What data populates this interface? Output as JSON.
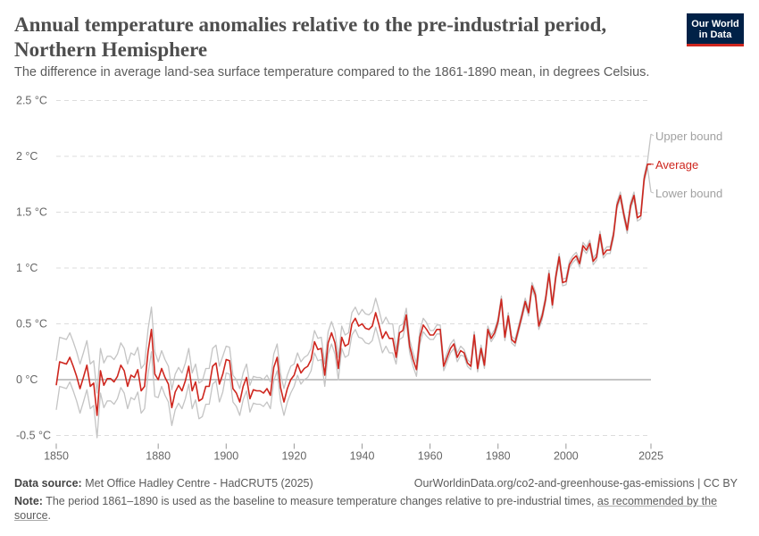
{
  "header": {
    "title": "Annual temperature anomalies relative to the pre-industrial period, Northern Hemisphere",
    "subtitle": "The difference in average land-sea surface temperature compared to the 1861-1890 mean, in degrees Celsius.",
    "logo_text": "Our World in Data"
  },
  "footer": {
    "source_label": "Data source:",
    "source_text": "Met Office Hadley Centre - HadCRUT5 (2025)",
    "url_text": "OurWorldinData.org/co2-and-greenhouse-gas-emissions | CC BY",
    "note_label": "Note:",
    "note_text": "The period 1861–1890 is used as the baseline to measure temperature changes relative to pre-industrial times, ",
    "note_link": "as recommended by the source",
    "note_end": "."
  },
  "colors": {
    "average": "#ce261e",
    "bounds": "#c4c4c4",
    "grid": "#dddddd",
    "zero_line": "#a1a1a1",
    "logo_bg": "#002147"
  },
  "chart_data": {
    "type": "line",
    "x_start": 1850,
    "x_end": 2025,
    "xlim": [
      1850,
      2025
    ],
    "ylim": [
      -0.5,
      2.5
    ],
    "x_ticks": [
      1850,
      1880,
      1900,
      1920,
      1940,
      1960,
      1980,
      2000,
      2025
    ],
    "y_ticks": [
      -0.5,
      0,
      0.5,
      1,
      1.5,
      2,
      2.5
    ],
    "y_tick_labels": [
      "-0.5 °C",
      "0 °C",
      "0.5 °C",
      "1 °C",
      "1.5 °C",
      "2 °C",
      "2.5 °C"
    ],
    "grid": "horizontal dashed",
    "series": [
      {
        "name": "Upper bound",
        "color": "#c4c4c4",
        "values": [
          0.17,
          0.38,
          0.37,
          0.36,
          0.42,
          0.34,
          0.25,
          0.14,
          0.24,
          0.35,
          0.14,
          0.17,
          -0.12,
          0.28,
          0.15,
          0.21,
          0.21,
          0.18,
          0.23,
          0.33,
          0.28,
          0.14,
          0.24,
          0.22,
          0.29,
          0.1,
          0.14,
          0.45,
          0.65,
          0.25,
          0.16,
          0.26,
          0.18,
          0.12,
          -0.09,
          0.05,
          0.11,
          0.06,
          0.15,
          0.28,
          0.06,
          0.14,
          -0.03,
          -0.01,
          0.1,
          0.1,
          0.28,
          0.31,
          0.12,
          0.21,
          0.3,
          0.29,
          0.04,
          0,
          -0.08,
          0.06,
          0.14,
          -0.05,
          0.03,
          0.02,
          0.02,
          0,
          0.04,
          -0.02,
          0.23,
          0.32,
          0.05,
          -0.08,
          0.04,
          0.12,
          0.14,
          0.24,
          0.16,
          0.2,
          0.22,
          0.28,
          0.44,
          0.37,
          0.38,
          0.14,
          0.43,
          0.52,
          0.43,
          0.2,
          0.48,
          0.4,
          0.42,
          0.6,
          0.65,
          0.58,
          0.63,
          0.59,
          0.58,
          0.61,
          0.73,
          0.62,
          0.5,
          0.56,
          0.5,
          0.5,
          0.26,
          0.48,
          0.5,
          0.64,
          0.36,
          0.24,
          0.15,
          0.44,
          0.55,
          0.51,
          0.44,
          0.44,
          0.49,
          0.49,
          0.16,
          0.24,
          0.32,
          0.36,
          0.24,
          0.3,
          0.27,
          0.18,
          0.15,
          0.43,
          0.13,
          0.31,
          0.16,
          0.48,
          0.4,
          0.45,
          0.55,
          0.75,
          0.41,
          0.6,
          0.39,
          0.36,
          0.48,
          0.6,
          0.73,
          0.63,
          0.87,
          0.79,
          0.51,
          0.6,
          0.75,
          0.98,
          0.7,
          0.95,
          1.13,
          0.9,
          0.91,
          1.06,
          1.11,
          1.14,
          1.07,
          1.23,
          1.19,
          1.25,
          1.09,
          1.13,
          1.33,
          1.15,
          1.19,
          1.19,
          1.33,
          1.59,
          1.68,
          1.51,
          1.37,
          1.59,
          1.68,
          1.48,
          1.5,
          1.83,
          1.96,
          2.2
        ]
      },
      {
        "name": "Lower bound",
        "color": "#c4c4c4",
        "values": [
          -0.27,
          -0.06,
          -0.07,
          -0.08,
          -0.02,
          -0.1,
          -0.19,
          -0.3,
          -0.2,
          -0.09,
          -0.26,
          -0.23,
          -0.52,
          -0.12,
          -0.25,
          -0.19,
          -0.19,
          -0.22,
          -0.17,
          -0.07,
          -0.12,
          -0.26,
          -0.16,
          -0.18,
          -0.11,
          -0.3,
          -0.26,
          0.05,
          0.25,
          -0.15,
          -0.16,
          -0.06,
          -0.14,
          -0.2,
          -0.41,
          -0.27,
          -0.21,
          -0.26,
          -0.17,
          -0.04,
          -0.26,
          -0.18,
          -0.35,
          -0.33,
          -0.22,
          -0.22,
          -0.04,
          -0.01,
          -0.2,
          -0.11,
          0.06,
          0.05,
          -0.2,
          -0.24,
          -0.32,
          -0.18,
          -0.1,
          -0.29,
          -0.21,
          -0.22,
          -0.22,
          -0.24,
          -0.2,
          -0.26,
          -0.01,
          0.08,
          -0.19,
          -0.32,
          -0.2,
          -0.12,
          -0.06,
          0.04,
          -0.04,
          0,
          0.02,
          0.08,
          0.24,
          0.17,
          0.18,
          -0.06,
          0.23,
          0.32,
          0.23,
          0,
          0.28,
          0.2,
          0.22,
          0.4,
          0.45,
          0.38,
          0.37,
          0.33,
          0.32,
          0.35,
          0.47,
          0.36,
          0.24,
          0.3,
          0.24,
          0.24,
          0.14,
          0.36,
          0.38,
          0.52,
          0.24,
          0.12,
          0.03,
          0.32,
          0.43,
          0.39,
          0.36,
          0.36,
          0.41,
          0.41,
          0.08,
          0.16,
          0.24,
          0.28,
          0.16,
          0.22,
          0.21,
          0.12,
          0.09,
          0.37,
          0.07,
          0.25,
          0.1,
          0.42,
          0.34,
          0.39,
          0.49,
          0.69,
          0.35,
          0.54,
          0.33,
          0.3,
          0.42,
          0.54,
          0.67,
          0.57,
          0.81,
          0.73,
          0.45,
          0.54,
          0.69,
          0.92,
          0.64,
          0.89,
          1.07,
          0.84,
          0.85,
          1.0,
          1.05,
          1.08,
          1.01,
          1.17,
          1.13,
          1.19,
          1.03,
          1.07,
          1.27,
          1.09,
          1.13,
          1.13,
          1.27,
          1.53,
          1.62,
          1.45,
          1.31,
          1.53,
          1.62,
          1.42,
          1.44,
          1.77,
          1.9,
          1.68
        ]
      },
      {
        "name": "Average",
        "color": "#ce261e",
        "values": [
          -0.05,
          0.16,
          0.15,
          0.14,
          0.2,
          0.12,
          0.03,
          -0.08,
          0.02,
          0.13,
          -0.06,
          -0.03,
          -0.32,
          0.08,
          -0.05,
          0.01,
          0.01,
          -0.02,
          0.03,
          0.13,
          0.08,
          -0.06,
          0.04,
          0.02,
          0.09,
          -0.1,
          -0.06,
          0.25,
          0.45,
          0.05,
          0.0,
          0.1,
          0.02,
          -0.04,
          -0.25,
          -0.11,
          -0.05,
          -0.1,
          -0.01,
          0.12,
          -0.1,
          -0.02,
          -0.19,
          -0.17,
          -0.06,
          -0.06,
          0.12,
          0.15,
          -0.04,
          0.05,
          0.18,
          0.17,
          -0.08,
          -0.12,
          -0.2,
          -0.06,
          0.02,
          -0.17,
          -0.09,
          -0.1,
          -0.1,
          -0.12,
          -0.08,
          -0.14,
          0.11,
          0.2,
          -0.07,
          -0.2,
          -0.08,
          0.0,
          0.04,
          0.14,
          0.06,
          0.1,
          0.12,
          0.18,
          0.34,
          0.27,
          0.28,
          0.04,
          0.33,
          0.42,
          0.33,
          0.1,
          0.38,
          0.3,
          0.32,
          0.5,
          0.55,
          0.48,
          0.5,
          0.46,
          0.45,
          0.48,
          0.6,
          0.49,
          0.37,
          0.43,
          0.37,
          0.37,
          0.2,
          0.42,
          0.44,
          0.58,
          0.3,
          0.18,
          0.09,
          0.38,
          0.49,
          0.45,
          0.4,
          0.4,
          0.45,
          0.45,
          0.12,
          0.2,
          0.28,
          0.32,
          0.2,
          0.26,
          0.24,
          0.15,
          0.12,
          0.4,
          0.1,
          0.28,
          0.13,
          0.45,
          0.37,
          0.42,
          0.52,
          0.72,
          0.38,
          0.57,
          0.36,
          0.33,
          0.45,
          0.57,
          0.7,
          0.6,
          0.84,
          0.76,
          0.48,
          0.57,
          0.72,
          0.95,
          0.67,
          0.92,
          1.1,
          0.87,
          0.88,
          1.03,
          1.08,
          1.11,
          1.04,
          1.2,
          1.16,
          1.22,
          1.06,
          1.1,
          1.3,
          1.12,
          1.16,
          1.16,
          1.3,
          1.56,
          1.65,
          1.48,
          1.34,
          1.56,
          1.65,
          1.45,
          1.47,
          1.8,
          1.93,
          1.93
        ]
      }
    ]
  }
}
